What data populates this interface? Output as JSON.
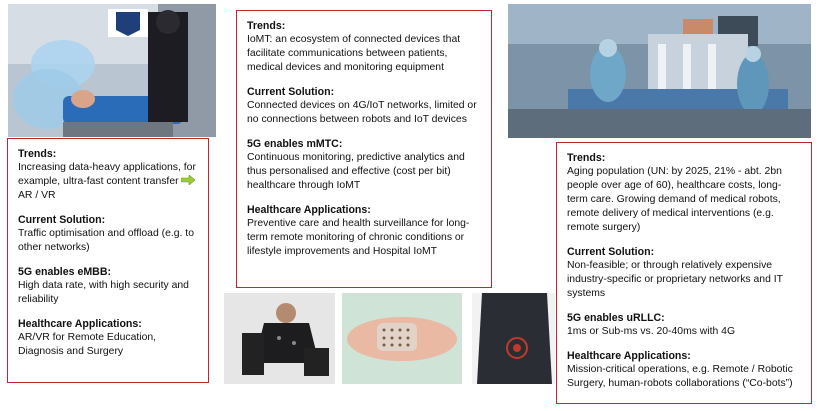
{
  "left_box": {
    "trends_heading": "Trends:",
    "trends_text_a": "Increasing data-heavy applications, for example, ultra-fast content transfer",
    "trends_text_b": "AR / VR",
    "solution_heading": "Current Solution:",
    "solution_text": "Traffic optimisation and offload (e.g. to other networks)",
    "enables_heading": "5G enables eMBB:",
    "enables_text": "High data rate, with high security and reliability",
    "apps_heading": "Healthcare Applications:",
    "apps_text": "AR/VR for Remote Education, Diagnosis and Surgery"
  },
  "middle_box": {
    "trends_heading": "Trends:",
    "trends_text": "IoMT: an ecosystem of connected devices that facilitate communications between patients, medical devices and monitoring equipment",
    "solution_heading": "Current Solution:",
    "solution_text": "Connected devices on 4G/IoT networks, limited or no connections between robots and IoT devices",
    "enables_heading": "5G enables mMTC:",
    "enables_text": "Continuous monitoring, predictive analytics and thus personalised and effective (cost per bit) healthcare through IoMT",
    "apps_heading": "Healthcare Applications:",
    "apps_text": "Preventive care and health surveillance for long-term remote monitoring of chronic conditions or lifestyle improvements and Hospital IoMT"
  },
  "right_box": {
    "trends_heading": "Trends:",
    "trends_text": "Aging population (UN: by 2025, 21% - abt. 2bn people over age of 60), healthcare costs, long-term care. Growing demand of medical robots, remote delivery of medical interventions (e.g. remote surgery)",
    "solution_heading": "Current Solution:",
    "solution_text": "Non-feasible; or through relatively expensive industry-specific or proprietary networks and IT systems",
    "enables_heading": "5G enables uRLLC:",
    "enables_text": "1ms or Sub-ms vs. 20-40ms with 4G",
    "apps_heading": "Healthcare Applications:",
    "apps_text": "Mission-critical operations, e.g. Remote / Robotic Surgery, human-robots collaborations (“Co-bots”)"
  },
  "colors": {
    "box_border": "#c0262c",
    "arrow_fill": "#9ccc3c"
  }
}
